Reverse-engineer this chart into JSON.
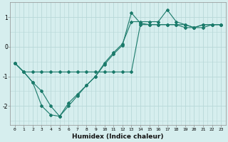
{
  "xlabel": "Humidex (Indice chaleur)",
  "bg_color": "#d6eeee",
  "grid_color": "#b8d8d8",
  "line_color": "#1a7a6a",
  "series1_x": [
    0,
    1,
    2,
    3,
    4,
    5,
    6,
    7,
    8,
    9,
    10,
    11,
    12,
    13,
    14,
    15,
    16,
    17,
    18,
    19,
    20,
    21,
    22,
    23
  ],
  "series1_y": [
    -0.55,
    -0.85,
    -0.85,
    -0.85,
    -0.85,
    -0.85,
    -0.85,
    -0.85,
    -0.85,
    -0.85,
    -0.85,
    -0.85,
    -0.85,
    -0.85,
    0.75,
    0.75,
    0.75,
    0.75,
    0.75,
    0.75,
    0.65,
    0.65,
    0.75,
    0.75
  ],
  "series2_x": [
    0,
    1,
    2,
    3,
    4,
    5,
    6,
    7,
    8,
    9,
    10,
    11,
    12,
    13,
    14,
    15,
    16,
    17,
    18,
    19,
    20,
    21,
    22,
    23
  ],
  "series2_y": [
    -0.55,
    -0.85,
    -1.2,
    -2.0,
    -2.3,
    -2.35,
    -1.9,
    -1.6,
    -1.3,
    -1.0,
    -0.6,
    -0.25,
    0.05,
    1.15,
    0.8,
    0.75,
    0.75,
    0.75,
    0.75,
    0.65,
    0.65,
    0.75,
    0.75,
    0.75
  ],
  "series3_x": [
    0,
    1,
    2,
    3,
    4,
    5,
    6,
    7,
    8,
    9,
    10,
    11,
    12,
    13,
    14,
    15,
    16,
    17,
    18,
    19,
    20,
    21,
    22,
    23
  ],
  "series3_y": [
    -0.55,
    -0.85,
    -1.2,
    -1.5,
    -2.0,
    -2.35,
    -2.0,
    -1.65,
    -1.3,
    -1.0,
    -0.55,
    -0.2,
    0.1,
    0.85,
    0.85,
    0.85,
    0.85,
    1.25,
    0.85,
    0.75,
    0.65,
    0.75,
    0.75,
    0.75
  ],
  "ylim": [
    -2.65,
    1.5
  ],
  "xlim": [
    -0.5,
    23.5
  ],
  "yticks": [
    -2,
    -1,
    0,
    1
  ],
  "xticks": [
    0,
    1,
    2,
    3,
    4,
    5,
    6,
    7,
    8,
    9,
    10,
    11,
    12,
    13,
    14,
    15,
    16,
    17,
    18,
    19,
    20,
    21,
    22,
    23
  ],
  "markersize": 2.0,
  "linewidth": 0.8
}
